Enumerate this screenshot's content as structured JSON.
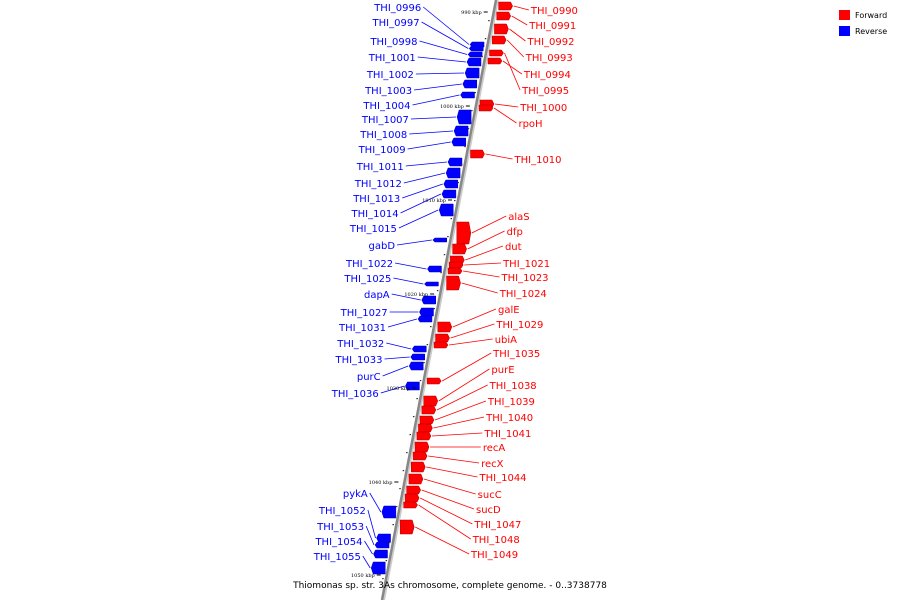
{
  "caption": "Thiomonas sp. str. 3As chromosome, complete genome. - 0..3738778",
  "legend": [
    {
      "label": "Forward",
      "color": "#ff0000"
    },
    {
      "label": "Reverse",
      "color": "#0000ff"
    }
  ],
  "colors": {
    "forward": "#ff0000",
    "reverse": "#0000ff",
    "axis": "#888888"
  },
  "ticks": [
    "990 kbp",
    "1000 kbp",
    "1010 kbp",
    "1020 kbp",
    "1030 kbp",
    "1040 kbp",
    "1050 kbp"
  ],
  "forward_genes": [
    "THI_0990",
    "THI_0991",
    "THI_0992",
    "THI_0993",
    "THI_0994",
    "THI_0995",
    "THI_1000",
    "rpoH",
    "THI_1010",
    "alaS",
    "dfp",
    "dut",
    "THI_1021",
    "THI_1023",
    "THI_1024",
    "galE",
    "THI_1029",
    "ubiA",
    "THI_1035",
    "purE",
    "THI_1038",
    "THI_1039",
    "THI_1040",
    "THI_1041",
    "recA",
    "recX",
    "THI_1044",
    "sucC",
    "sucD",
    "THI_1047",
    "THI_1048",
    "THI_1049"
  ],
  "reverse_genes": [
    "THI_0996",
    "THI_0997",
    "THI_0998",
    "THI_1001",
    "THI_1002",
    "THI_1003",
    "THI_1004",
    "THI_1007",
    "THI_1008",
    "THI_1009",
    "THI_1011",
    "THI_1012",
    "THI_1013",
    "THI_1014",
    "THI_1015",
    "gabD",
    "THI_1022",
    "THI_1025",
    "dapA",
    "THI_1027",
    "THI_1031",
    "THI_1032",
    "THI_1033",
    "purC",
    "THI_1036",
    "pykA",
    "THI_1052",
    "THI_1053",
    "THI_1054",
    "THI_1055"
  ]
}
